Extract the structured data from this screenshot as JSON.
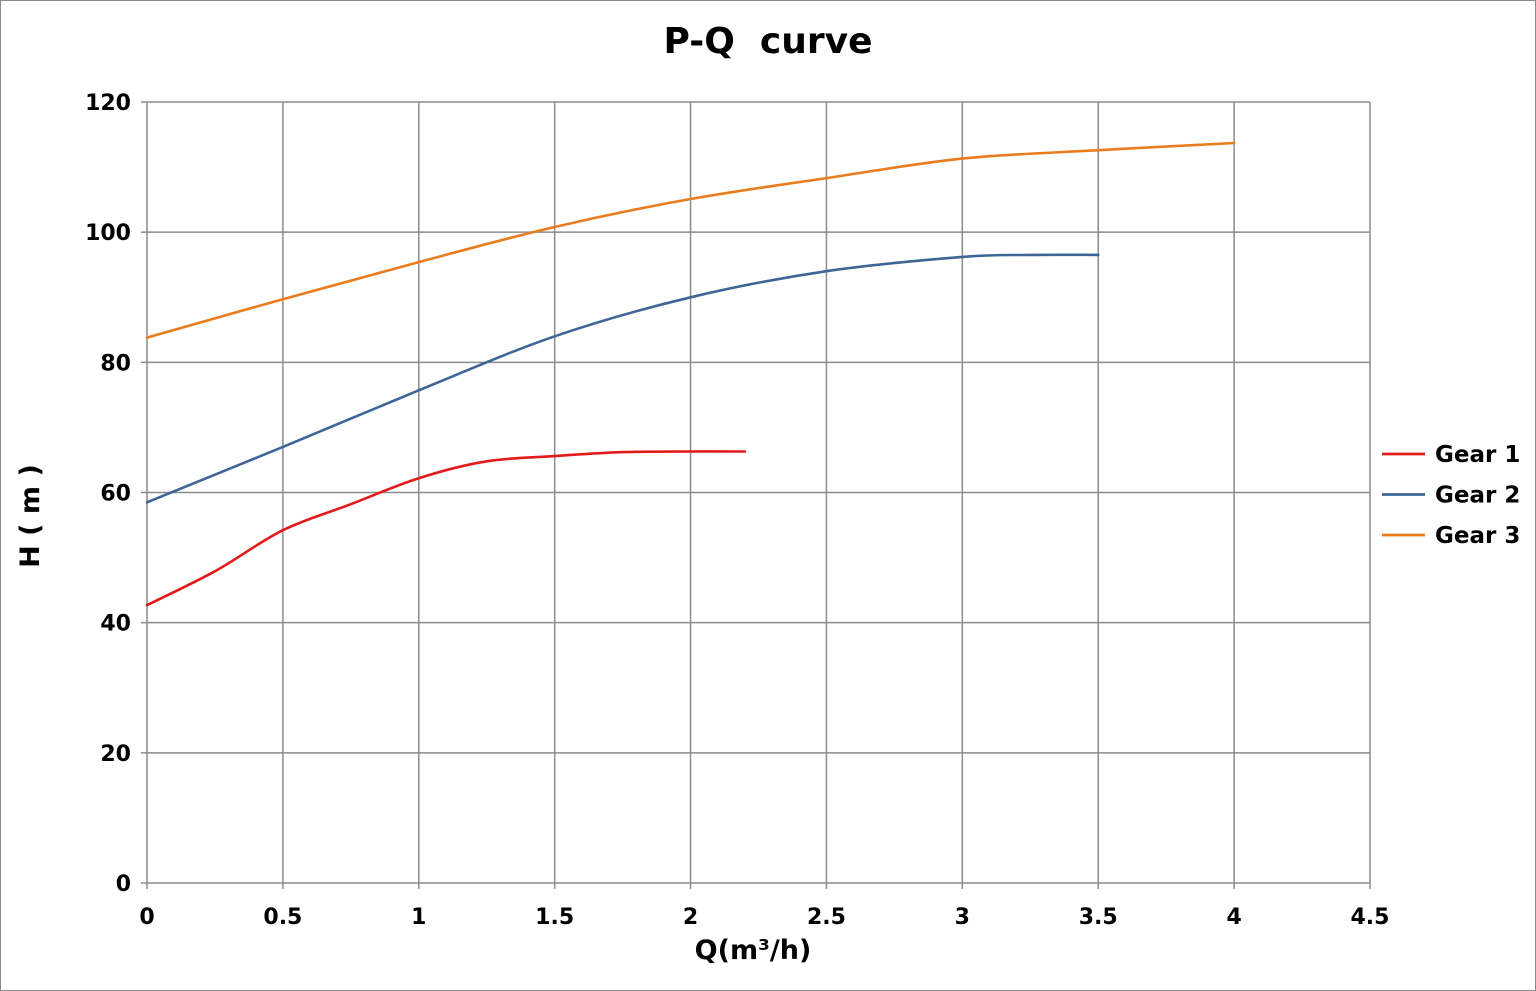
{
  "chart_data": {
    "type": "line",
    "title": "P-Q  curve",
    "xlabel": "Q(m³/h)",
    "ylabel": "H ( m )",
    "xlim": [
      0,
      4.5
    ],
    "ylim": [
      0,
      120
    ],
    "xticks": [
      0,
      0.5,
      1,
      1.5,
      2,
      2.5,
      3,
      3.5,
      4,
      4.5
    ],
    "xtick_labels": [
      "0",
      "0.5",
      "1",
      "1.5",
      "2",
      "2.5",
      "3",
      "3.5",
      "4",
      "4.5"
    ],
    "yticks": [
      0,
      20,
      40,
      60,
      80,
      100,
      120
    ],
    "ytick_labels": [
      "0",
      "20",
      "40",
      "60",
      "80",
      "100",
      "120"
    ],
    "grid": true,
    "legend_position": "right",
    "series": [
      {
        "name": "Gear 1",
        "color": "#e31a1c",
        "x": [
          0,
          0.25,
          0.5,
          0.75,
          1.0,
          1.25,
          1.5,
          1.75,
          2.0,
          2.2
        ],
        "y": [
          42.7,
          47.9,
          54.2,
          58.2,
          62.2,
          64.8,
          65.6,
          66.2,
          66.3,
          66.3
        ]
      },
      {
        "name": "Gear 2",
        "color": "#3d6596",
        "x": [
          0,
          0.5,
          1.0,
          1.5,
          2.0,
          2.5,
          3.0,
          3.25,
          3.5
        ],
        "y": [
          58.5,
          67.0,
          75.7,
          84.0,
          90.0,
          94.0,
          96.2,
          96.5,
          96.5
        ]
      },
      {
        "name": "Gear 3",
        "color": "#e97c1d",
        "x": [
          0,
          0.5,
          1.0,
          1.5,
          2.0,
          2.5,
          3.0,
          3.5,
          4.0
        ],
        "y": [
          83.8,
          89.7,
          95.4,
          100.8,
          105.1,
          108.3,
          111.3,
          112.6,
          113.7
        ]
      }
    ]
  }
}
